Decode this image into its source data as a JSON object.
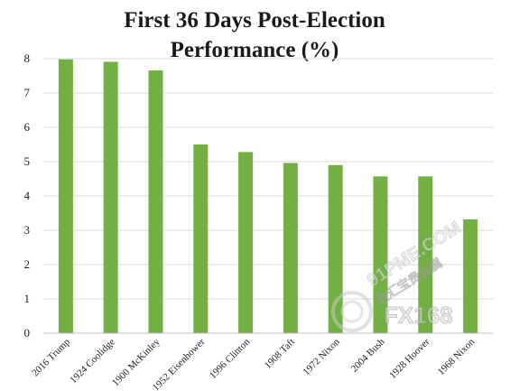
{
  "chart_data": {
    "type": "bar",
    "title_line1": "First 36 Days Post-Election",
    "title_line2": "Performance (%)",
    "categories": [
      "2016 Trump",
      "1924 Coolidge",
      "1900 McKinley",
      "1952 Eisenhower",
      "1996 Clinton",
      "1908 Taft",
      "1972 Nixon",
      "2004 Bush",
      "1928 Hoover",
      "1968 Nixon"
    ],
    "values": [
      7.98,
      7.91,
      7.66,
      5.5,
      5.28,
      4.96,
      4.9,
      4.57,
      4.57,
      3.32
    ],
    "ylim": [
      0,
      8
    ],
    "yticks": [
      "0",
      "1",
      "2",
      "3",
      "4",
      "5",
      "6",
      "7",
      "8"
    ],
    "grid": true,
    "xlabel": "",
    "ylabel": "",
    "bar_color": "#72b043"
  },
  "watermark": {
    "line1": "91PME.COM",
    "line2": "金汇宝贵金属",
    "line3": "FX168"
  }
}
